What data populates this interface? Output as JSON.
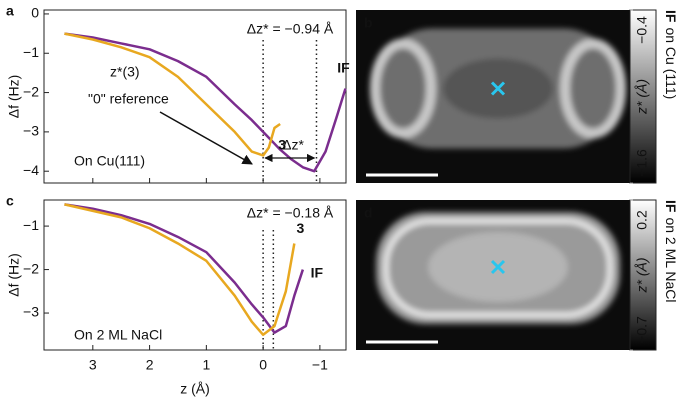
{
  "chart_data": [
    {
      "type": "line",
      "panel": "a",
      "ylabel": "Δf (Hz)",
      "x": [
        3.5,
        3,
        2.5,
        2,
        1.5,
        1,
        0.5,
        0.2,
        0,
        -0.1,
        -0.2,
        -0.3,
        -0.5,
        -0.7,
        -0.9,
        -1.1,
        -1.3,
        -1.45
      ],
      "series": [
        {
          "name": "IF",
          "color": "#7b2d8e",
          "values": [
            -0.5,
            -0.6,
            -0.75,
            -0.9,
            -1.2,
            -1.6,
            -2.3,
            -2.7,
            -3.0,
            -3.15,
            -3.3,
            -3.45,
            -3.7,
            -3.9,
            -4.0,
            -3.5,
            -2.6,
            -1.9
          ]
        },
        {
          "name": "3",
          "color": "#e8a820",
          "values": [
            -0.5,
            -0.65,
            -0.85,
            -1.1,
            -1.6,
            -2.3,
            -3.0,
            -3.5,
            -3.6,
            -3.4,
            -2.9,
            -2.8,
            null,
            null,
            null,
            null,
            null,
            null
          ]
        }
      ],
      "xlim": [
        3.86,
        -1.46
      ],
      "xticks": [
        3,
        2,
        1,
        0,
        -1
      ],
      "ylim": [
        -4.3,
        0.1
      ],
      "yticks": [
        0,
        {
          "value": -1,
          "label": "−1"
        },
        {
          "value": -2,
          "label": "−2"
        },
        {
          "value": -3,
          "label": "−3"
        },
        {
          "value": -4,
          "label": "−4"
        }
      ],
      "vlines": [
        0,
        -0.94
      ],
      "annotations": [
        "Δz* = −0.94 Å",
        "z*(3)",
        "\"0\" reference",
        "Δz*",
        "On Cu(111)"
      ]
    },
    {
      "type": "line",
      "panel": "c",
      "ylabel": "Δf (Hz)",
      "xlabel": "z (Å)",
      "x": [
        3.5,
        3,
        2.5,
        2,
        1.5,
        1,
        0.5,
        0.2,
        0,
        -0.2,
        -0.4,
        -0.55,
        -0.7
      ],
      "series": [
        {
          "name": "IF",
          "color": "#7b2d8e",
          "values": [
            -0.5,
            -0.6,
            -0.75,
            -0.95,
            -1.25,
            -1.6,
            -2.3,
            -2.8,
            -3.1,
            -3.45,
            -3.3,
            -2.6,
            -2.0
          ]
        },
        {
          "name": "3",
          "color": "#e8a820",
          "values": [
            -0.5,
            -0.65,
            -0.8,
            -1.05,
            -1.4,
            -1.8,
            -2.6,
            -3.2,
            -3.5,
            -3.3,
            -2.5,
            -1.4,
            null
          ]
        }
      ],
      "xlim": [
        3.86,
        -1.46
      ],
      "xticks": [
        3,
        2,
        1,
        0,
        {
          "value": -1,
          "label": "−1"
        }
      ],
      "ylim": [
        -3.85,
        -0.4
      ],
      "yticks": [
        {
          "value": -1,
          "label": "−1"
        },
        {
          "value": -2,
          "label": "−2"
        },
        {
          "value": -3,
          "label": "−3"
        }
      ],
      "vlines": [
        0,
        -0.18
      ],
      "annotations": [
        "Δz* = −0.18 Å",
        "On 2 ML NaCl"
      ]
    },
    {
      "type": "image",
      "panel": "b",
      "clabel": "z* (Å)",
      "caption_bold": "IF",
      "caption": "on Cu (111)",
      "clim": [
        -1.6,
        -0.4
      ],
      "cticks": [
        {
          "value": -0.4,
          "label": "−0.4"
        },
        {
          "value": -1.6,
          "label": "−1.6"
        }
      ]
    },
    {
      "type": "image",
      "panel": "d",
      "clabel": "z* (Å)",
      "caption_bold": "IF",
      "caption": "on 2 ML NaCl",
      "clim": [
        -0.7,
        0.2
      ],
      "cticks": [
        0.2,
        {
          "value": -0.7,
          "label": "−0.7"
        }
      ]
    }
  ]
}
